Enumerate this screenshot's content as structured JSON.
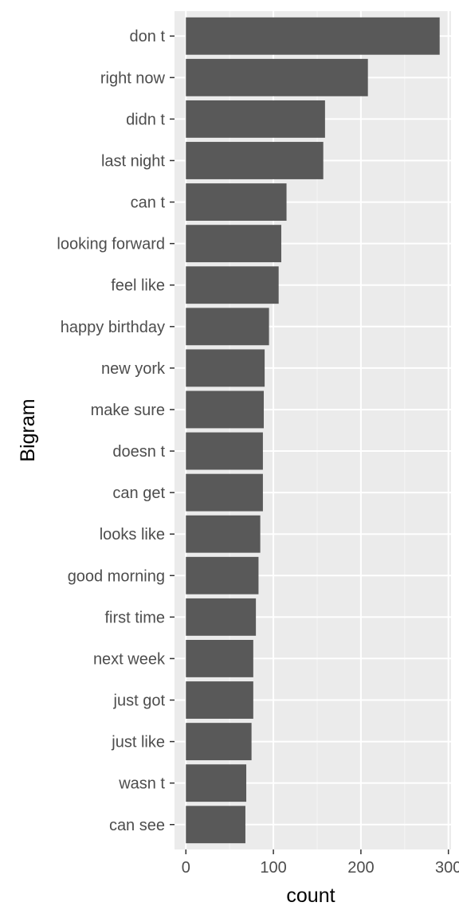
{
  "chart_data": {
    "type": "bar",
    "orientation": "horizontal",
    "title": "",
    "xlabel": "count",
    "ylabel": "Bigram",
    "xlim": [
      -13,
      303
    ],
    "xticks": [
      0,
      100,
      200,
      300
    ],
    "grid": true,
    "categories": [
      "don t",
      "right now",
      "didn t",
      "last night",
      "can t",
      "looking forward",
      "feel like",
      "happy birthday",
      "new york",
      "make sure",
      "doesn t",
      "can get",
      "looks like",
      "good morning",
      "first time",
      "next week",
      "just got",
      "just like",
      "wasn t",
      "can see"
    ],
    "values": [
      290,
      208,
      159,
      157,
      115,
      109,
      106,
      95,
      90,
      89,
      88,
      88,
      85,
      83,
      80,
      77,
      77,
      75,
      69,
      68
    ],
    "colors": {
      "panel": "#ebebeb",
      "grid_major": "#ffffff",
      "grid_minor": "#f5f5f5",
      "bar": "#595959",
      "tick": "#333333"
    }
  }
}
